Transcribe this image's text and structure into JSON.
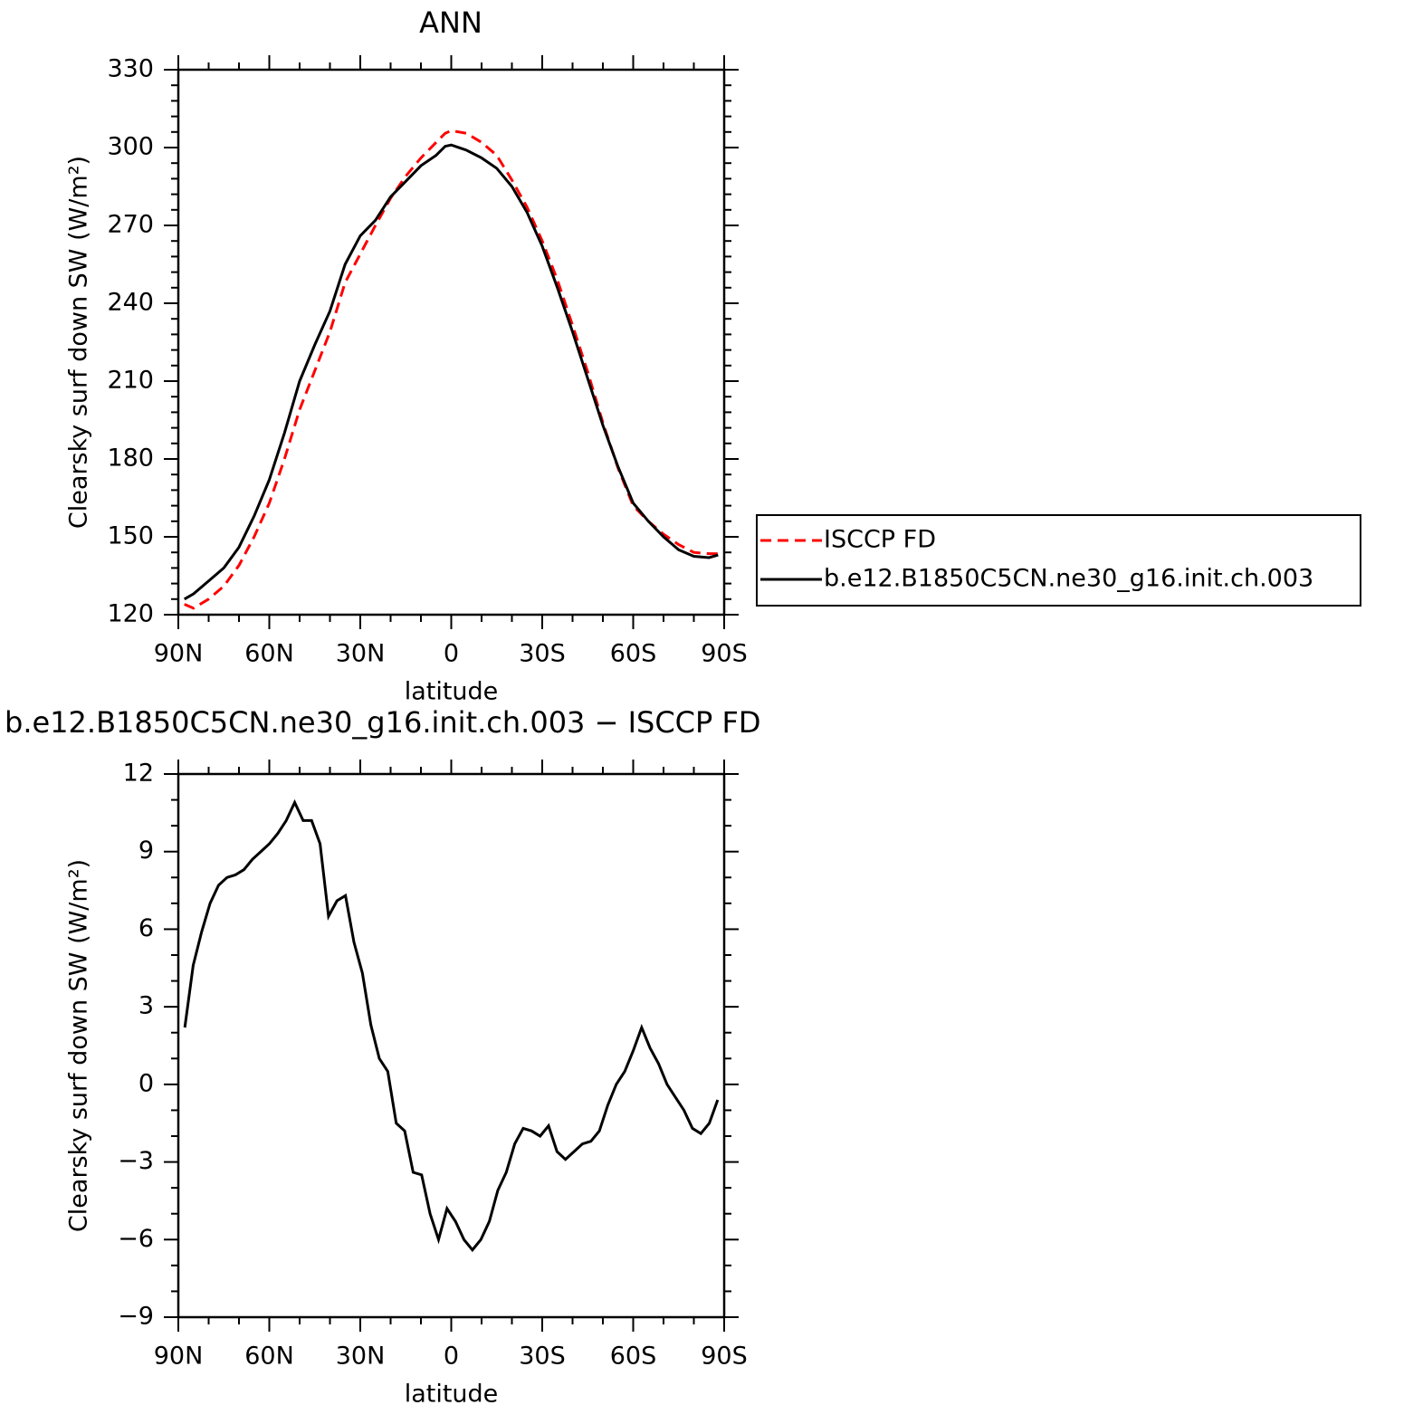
{
  "chart_data": [
    {
      "type": "line",
      "title": "ANN",
      "x_label": "latitude",
      "y_label": "Clearsky surf down SW (W/m²)",
      "x": [
        88,
        85,
        80,
        75,
        70,
        65,
        60,
        55,
        50,
        45,
        40,
        35,
        30,
        25,
        20,
        15,
        10,
        5,
        2,
        0,
        -5,
        -10,
        -15,
        -20,
        -25,
        -30,
        -35,
        -40,
        -45,
        -50,
        -55,
        -60,
        -65,
        -70,
        -75,
        -80,
        -85,
        -88
      ],
      "series": [
        {
          "name": "ISCCP FD",
          "color": "#ff0000",
          "dash": "dashed",
          "values": [
            124,
            122.5,
            126,
            131,
            139,
            150,
            163,
            180,
            199,
            214,
            229,
            248,
            259,
            270,
            280.5,
            289,
            296,
            302,
            305.5,
            306.5,
            305.5,
            302,
            297,
            287.5,
            277,
            264,
            249,
            231.5,
            213.5,
            194,
            176.5,
            162,
            156,
            151,
            147,
            144,
            143.5,
            143.5
          ]
        },
        {
          "name": "b.e12.B1850C5CN.ne30_g16.init.ch.003",
          "color": "#000000",
          "dash": "solid",
          "values": [
            126,
            128,
            133,
            138,
            146,
            158,
            172,
            190,
            210,
            224,
            237,
            255,
            266,
            272,
            281,
            287,
            293,
            297,
            300.5,
            301,
            299,
            296,
            292,
            285,
            275,
            262,
            246,
            229,
            211,
            193,
            177,
            163,
            156,
            150,
            145,
            142.5,
            142,
            143
          ]
        }
      ],
      "xlim": [
        90,
        -90
      ],
      "xticks": [
        {
          "value": 90,
          "label": "90N"
        },
        {
          "value": 60,
          "label": "60N"
        },
        {
          "value": 30,
          "label": "30N"
        },
        0,
        {
          "value": -30,
          "label": "30S"
        },
        {
          "value": -60,
          "label": "60S"
        },
        {
          "value": -90,
          "label": "90S"
        }
      ],
      "ylim": [
        120,
        330
      ],
      "yticks": [
        120,
        150,
        180,
        210,
        240,
        270,
        300,
        330
      ],
      "legend": "right"
    },
    {
      "type": "line",
      "title": "b.e12.B1850C5CN.ne30_g16.init.ch.003 − ISCCP FD",
      "x_label": "latitude",
      "y_label": "Clearsky surf down SW (W/m²)",
      "x": [
        87.86,
        85.1,
        82.31,
        79.53,
        76.74,
        73.95,
        71.16,
        68.37,
        65.58,
        62.79,
        60,
        57.21,
        54.42,
        51.63,
        48.84,
        46.05,
        43.26,
        40.47,
        37.67,
        34.88,
        32.09,
        29.3,
        26.51,
        23.72,
        20.93,
        18.14,
        15.35,
        12.56,
        9.77,
        6.98,
        4.19,
        1.4,
        -1.4,
        -4.19,
        -6.98,
        -9.77,
        -12.56,
        -15.35,
        -18.14,
        -20.93,
        -23.72,
        -26.51,
        -29.3,
        -32.09,
        -34.88,
        -37.67,
        -40.47,
        -43.26,
        -46.05,
        -48.84,
        -51.63,
        -54.42,
        -57.21,
        -60,
        -62.79,
        -65.58,
        -68.37,
        -71.16,
        -73.95,
        -76.74,
        -79.53,
        -82.31,
        -85.1,
        -87.86
      ],
      "series": [
        {
          "color": "#000000",
          "dash": "solid",
          "values": [
            2.2,
            4.6,
            5.9,
            7.0,
            7.7,
            8.0,
            8.1,
            8.3,
            8.7,
            9.0,
            9.3,
            9.7,
            10.2,
            10.9,
            10.2,
            10.2,
            9.3,
            6.5,
            7.1,
            7.3,
            5.5,
            4.3,
            2.3,
            1.0,
            0.5,
            -1.5,
            -1.8,
            -3.4,
            -3.5,
            -5.0,
            -6.0,
            -4.8,
            -5.3,
            -6.0,
            -6.4,
            -6.0,
            -5.3,
            -4.1,
            -3.4,
            -2.3,
            -1.7,
            -1.8,
            -2.0,
            -1.6,
            -2.6,
            -2.9,
            -2.6,
            -2.3,
            -2.2,
            -1.8,
            -0.8,
            0.0,
            0.5,
            1.3,
            2.2,
            1.4,
            0.8,
            0.0,
            -0.5,
            -1.0,
            -1.7,
            -1.9,
            -1.5,
            -0.6
          ]
        }
      ],
      "xlim": [
        90,
        -90
      ],
      "xticks": [
        {
          "value": 90,
          "label": "90N"
        },
        {
          "value": 60,
          "label": "60N"
        },
        {
          "value": 30,
          "label": "30N"
        },
        0,
        {
          "value": -30,
          "label": "30S"
        },
        {
          "value": -60,
          "label": "60S"
        },
        {
          "value": -90,
          "label": "90S"
        }
      ],
      "ylim": [
        -9,
        12
      ],
      "yticks": [
        {
          "value": -9,
          "label": "−9"
        },
        {
          "value": -6,
          "label": "−6"
        },
        {
          "value": -3,
          "label": "−3"
        },
        0,
        3,
        6,
        9,
        12
      ]
    }
  ]
}
